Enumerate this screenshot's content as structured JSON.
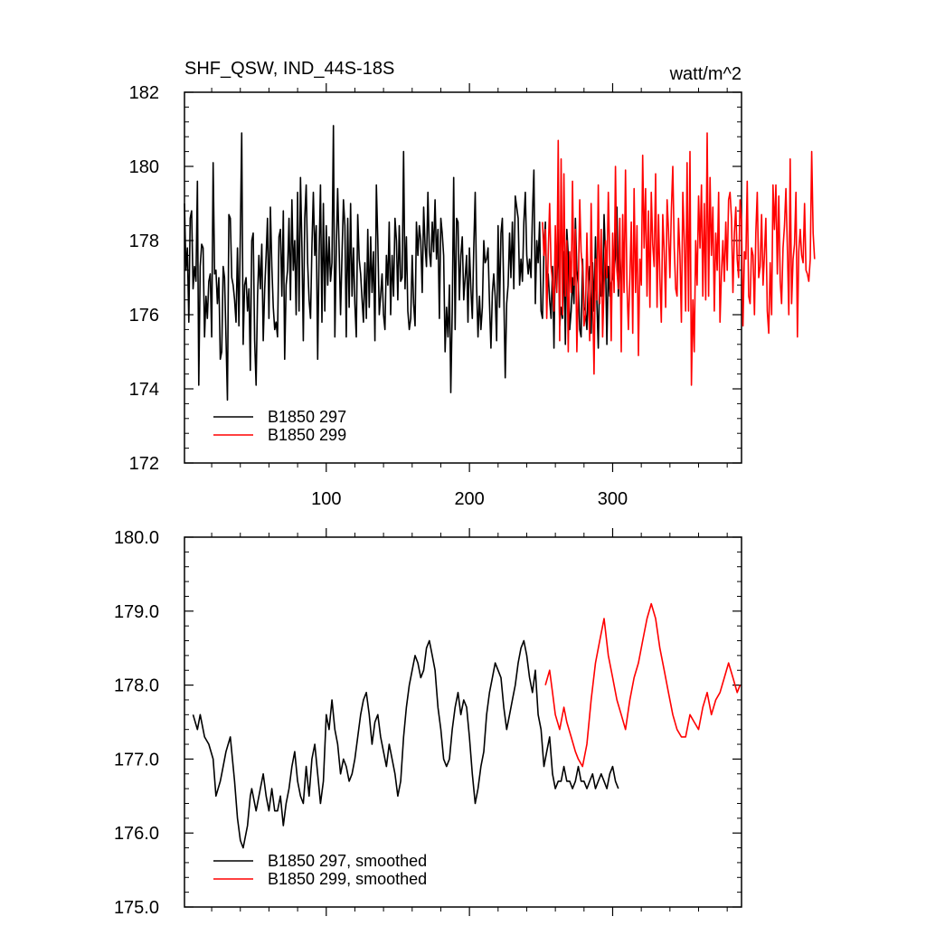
{
  "chart_data": [
    {
      "type": "line",
      "title": "SHF_QSW, IND_44S-18S",
      "units": "watt/m^2",
      "xlim": [
        1,
        390
      ],
      "ylim": [
        172,
        182
      ],
      "xticks": [
        100,
        200,
        300
      ],
      "xtick_labels": [
        "100",
        "200",
        "300"
      ],
      "yticks": [
        172,
        174,
        176,
        178,
        180,
        182
      ],
      "ytick_labels": [
        "172",
        "174",
        "176",
        "178",
        "180",
        "182"
      ],
      "legend_position": "bottom-left",
      "series": [
        {
          "name": "B1850 297",
          "color": "#000000",
          "x_start": 1,
          "values": [
            179.0,
            177.2,
            177.8,
            175.8,
            178.6,
            178.8,
            176.7,
            177.3,
            176.9,
            179.6,
            174.1,
            177.3,
            177.9,
            177.8,
            175.4,
            176.5,
            175.9,
            176.9,
            177.1,
            175.4,
            180.1,
            177.1,
            177.2,
            176.3,
            177.0,
            174.8,
            175.0,
            177.3,
            177.0,
            175.4,
            173.7,
            178.7,
            178.6,
            177.0,
            176.8,
            176.4,
            175.8,
            177.8,
            175.7,
            178.2,
            180.9,
            175.2,
            176.8,
            177.0,
            176.1,
            176.7,
            174.5,
            178.0,
            178.2,
            175.3,
            174.1,
            176.5,
            177.6,
            176.7,
            177.9,
            175.3,
            176.7,
            177.6,
            178.6,
            175.9,
            178.9,
            177.3,
            176.2,
            175.6,
            175.8,
            175.4,
            178.1,
            178.3,
            176.5,
            178.8,
            174.8,
            176.8,
            177.2,
            178.6,
            176.4,
            179.1,
            177.2,
            178.0,
            176.0,
            179.3,
            176.1,
            179.7,
            177.8,
            175.3,
            178.6,
            179.5,
            177.4,
            176.4,
            175.9,
            177.8,
            179.3,
            177.6,
            178.4,
            174.8,
            177.7,
            179.5,
            175.8,
            179.0,
            176.1,
            178.4,
            176.8,
            178.1,
            176.9,
            177.4,
            181.1,
            175.4,
            177.8,
            179.4,
            177.8,
            176.0,
            177.6,
            179.1,
            178.4,
            175.4,
            178.6,
            176.2,
            179.0,
            176.5,
            177.8,
            176.3,
            175.4,
            178.7,
            177.5,
            177.1,
            176.4,
            175.8,
            177.4,
            175.9,
            178.3,
            176.2,
            178.1,
            176.6,
            177.7,
            175.3,
            179.5,
            178.0,
            176.0,
            176.5,
            177.1,
            176.0,
            175.6,
            177.6,
            176.8,
            178.5,
            176.0,
            177.6,
            176.5,
            178.6,
            178.0,
            176.4,
            178.4,
            176.9,
            177.0,
            180.4,
            176.7,
            178.1,
            176.1,
            175.6,
            175.9,
            177.6,
            176.3,
            175.7,
            178.5,
            177.6,
            178.4,
            178.0,
            176.6,
            178.9,
            177.9,
            177.3,
            179.3,
            177.7,
            177.3,
            178.5,
            177.7,
            179.1,
            177.5,
            178.3,
            175.9,
            178.6,
            178.2,
            177.6,
            175.0,
            176.2,
            175.4,
            176.8,
            173.9,
            176.1,
            179.7,
            175.6,
            178.6,
            178.5,
            176.4,
            177.6,
            178.1,
            176.4,
            177.0,
            177.6,
            175.8,
            177.8,
            176.7,
            175.9,
            177.8,
            179.3,
            176.8,
            175.4,
            176.5,
            175.6,
            176.2,
            178.0,
            177.4,
            177.5,
            177.8,
            176.3,
            175.1,
            176.6,
            177.1,
            176.5,
            175.3,
            178.4,
            176.2,
            178.2,
            178.6,
            176.6,
            174.3,
            176.3,
            176.8,
            178.2,
            177.0,
            178.5,
            176.7,
            179.2,
            178.9,
            178.6,
            176.8,
            177.5,
            176.9,
            178.5,
            179.3,
            177.6,
            177.1,
            177.5,
            177.0,
            178.7,
            179.9,
            176.3,
            178.0,
            177.4,
            178.5,
            176.1,
            175.9,
            177.8,
            178.5,
            176.5,
            177.1,
            176.4,
            175.9,
            177.3,
            175.1,
            177.8,
            176.7,
            178.3,
            175.7,
            176.2,
            175.9,
            177.7,
            175.2,
            178.3,
            177.6,
            175.6,
            176.1,
            177.0,
            176.3,
            178.6,
            177.2,
            176.8,
            175.6,
            175.4,
            177.5,
            176.2,
            176.1,
            175.6,
            176.9,
            177.3,
            175.5,
            177.4,
            176.1,
            178.1,
            176.3,
            175.1,
            177.3,
            176.5,
            176.5,
            178.7,
            177.5,
            175.2,
            177.3,
            176.5,
            176.8,
            177.0,
            177.2,
            177.6,
            178.9,
            176.5,
            177.7,
            176.8
          ]
        },
        {
          "name": "B1850 299",
          "color": "#ff0000",
          "x_start": 251,
          "values": [
            178.5,
            177.6,
            178.3,
            175.9,
            177.6,
            179.0,
            177.3,
            176.9,
            176.1,
            178.4,
            176.6,
            180.7,
            175.3,
            180.2,
            176.0,
            179.8,
            176.5,
            178.0,
            175.0,
            177.7,
            176.6,
            179.6,
            176.8,
            178.3,
            175.0,
            176.7,
            179.1,
            177.7,
            177.2,
            175.7,
            176.0,
            178.2,
            176.6,
            175.3,
            179.0,
            176.6,
            174.4,
            177.5,
            176.4,
            179.5,
            176.3,
            178.3,
            175.4,
            176.8,
            178.0,
            177.0,
            179.3,
            177.5,
            175.3,
            178.2,
            176.6,
            180.0,
            177.2,
            176.7,
            178.6,
            175.0,
            178.7,
            176.6,
            179.9,
            176.8,
            175.6,
            177.0,
            178.5,
            175.5,
            179.4,
            176.6,
            178.4,
            174.9,
            177.5,
            176.8,
            180.3,
            177.8,
            179.4,
            176.5,
            178.8,
            176.2,
            179.3,
            177.9,
            177.3,
            179.8,
            176.2,
            178.7,
            177.0,
            175.8,
            178.7,
            177.7,
            176.2,
            179.1,
            178.3,
            177.0,
            178.8,
            180.0,
            177.8,
            176.7,
            176.5,
            178.6,
            177.6,
            175.8,
            179.3,
            178.0,
            176.1,
            180.1,
            176.1,
            180.4,
            174.1,
            176.4,
            175.0,
            178.0,
            176.8,
            179.2,
            177.8,
            179.5,
            176.5,
            179.0,
            176.4,
            180.9,
            176.5,
            179.7,
            177.6,
            178.9,
            176.1,
            178.2,
            177.2,
            179.3,
            175.8,
            177.1,
            178.0,
            176.9,
            178.5,
            177.2,
            179.1,
            179.3,
            178.6,
            176.6,
            178.2,
            178.9,
            177.5,
            177.0,
            179.1,
            178.5,
            175.7,
            177.7,
            177.5,
            179.6,
            176.5,
            176.3,
            177.8,
            177.6,
            176.0,
            178.2,
            179.3,
            177.0,
            177.3,
            178.7,
            176.8,
            177.6,
            178.6,
            176.1,
            175.5,
            177.4,
            176.0,
            179.5,
            178.3,
            179.5,
            177.1,
            179.2,
            176.9,
            176.3,
            177.8,
            178.4,
            179.4,
            177.8,
            176.0,
            180.2,
            176.3,
            177.5,
            177.9,
            179.3,
            175.4,
            177.7,
            178.3,
            177.6,
            177.4,
            179.0,
            177.2,
            177.1,
            176.9,
            177.5,
            180.4,
            178.2,
            177.5
          ]
        }
      ]
    },
    {
      "type": "line",
      "title": "",
      "xlim": [
        1,
        390
      ],
      "ylim": [
        175.0,
        180.0
      ],
      "xticks": [
        100,
        200,
        300
      ],
      "xtick_labels": [],
      "yticks": [
        175.0,
        176.0,
        177.0,
        178.0,
        179.0,
        180.0
      ],
      "ytick_labels": [
        "175.0",
        "176.0",
        "177.0",
        "178.0",
        "179.0",
        "180.0"
      ],
      "legend_position": "bottom-left",
      "series": [
        {
          "name": "B1850 297, smoothed",
          "color": "#000000",
          "anchors_x": [
            7,
            10,
            12,
            15,
            18,
            21,
            23,
            26,
            27,
            30,
            33,
            36,
            38,
            40,
            42,
            45,
            47,
            48,
            51,
            54,
            56,
            58,
            60,
            62,
            64,
            66,
            68,
            70,
            72,
            74,
            76,
            78,
            80,
            82,
            84,
            86,
            88,
            90,
            92,
            94,
            96,
            98,
            100,
            102,
            104,
            106,
            108,
            110,
            112,
            114,
            116,
            118,
            120,
            122,
            124,
            126,
            128,
            130,
            132,
            134,
            136,
            138,
            140,
            142,
            144,
            146,
            148,
            150,
            152,
            154,
            156,
            158,
            160,
            162,
            164,
            166,
            168,
            170,
            172,
            174,
            176,
            178,
            180,
            182,
            184,
            186,
            188,
            190,
            192,
            194,
            196,
            198,
            200,
            202,
            204,
            206,
            208,
            210,
            212,
            214,
            216,
            218,
            220,
            222,
            224,
            226,
            228,
            230,
            232,
            234,
            236,
            238,
            240,
            242,
            244,
            246,
            248,
            250,
            252,
            254,
            256,
            258,
            260,
            262,
            264,
            266,
            268,
            270,
            272,
            274,
            276,
            278,
            280,
            282,
            284,
            286,
            288,
            290,
            292,
            294,
            296,
            298,
            300,
            302,
            304
          ],
          "anchors_y": [
            177.6,
            177.4,
            177.6,
            177.3,
            177.2,
            177.0,
            176.5,
            176.7,
            176.8,
            177.1,
            177.3,
            176.7,
            176.2,
            175.9,
            175.8,
            176.1,
            176.5,
            176.6,
            176.3,
            176.6,
            176.8,
            176.5,
            176.3,
            176.6,
            176.3,
            176.3,
            176.5,
            176.1,
            176.4,
            176.6,
            176.9,
            177.1,
            176.7,
            176.5,
            176.4,
            176.9,
            176.5,
            177.0,
            177.2,
            176.8,
            176.4,
            176.7,
            177.6,
            177.4,
            177.8,
            177.4,
            177.2,
            176.8,
            177.0,
            176.9,
            176.7,
            176.8,
            177.0,
            177.3,
            177.6,
            177.8,
            177.9,
            177.6,
            177.2,
            177.5,
            177.6,
            177.3,
            177.1,
            176.9,
            177.2,
            177.0,
            176.8,
            176.5,
            176.7,
            177.3,
            177.7,
            178.0,
            178.2,
            178.4,
            178.3,
            178.1,
            178.2,
            178.5,
            178.6,
            178.4,
            178.2,
            177.7,
            177.4,
            177.0,
            176.9,
            177.0,
            177.4,
            177.7,
            177.9,
            177.6,
            177.8,
            177.7,
            177.3,
            176.8,
            176.4,
            176.6,
            176.9,
            177.1,
            177.6,
            177.9,
            178.1,
            178.3,
            178.2,
            178.1,
            177.7,
            177.4,
            177.6,
            177.8,
            178.0,
            178.3,
            178.5,
            178.6,
            178.4,
            178.1,
            177.9,
            178.2,
            177.6,
            177.4,
            176.9,
            177.1,
            177.3,
            176.8,
            176.6,
            176.7,
            176.7,
            176.9,
            176.7,
            176.7,
            176.6,
            176.7,
            176.9,
            176.7,
            176.7,
            176.6,
            176.7,
            176.8,
            176.6,
            176.7,
            176.8,
            176.7,
            176.6,
            176.8,
            176.9,
            176.7,
            176.6
          ]
        },
        {
          "name": "B1850 299, smoothed",
          "color": "#ff0000",
          "anchors_x": [
            253,
            256,
            258,
            260,
            263,
            266,
            268,
            271,
            274,
            276,
            279,
            282,
            285,
            288,
            291,
            294,
            297,
            300,
            303,
            306,
            309,
            312,
            315,
            318,
            321,
            324,
            327,
            330,
            333,
            336,
            339,
            342,
            345,
            348,
            351,
            354,
            357,
            360,
            363,
            366,
            369,
            372,
            375,
            378,
            381,
            384,
            387,
            389
          ],
          "anchors_y": [
            178.0,
            178.2,
            177.9,
            177.6,
            177.4,
            177.7,
            177.5,
            177.3,
            177.1,
            177.0,
            176.9,
            177.2,
            177.8,
            178.3,
            178.6,
            178.9,
            178.4,
            178.1,
            177.8,
            177.6,
            177.4,
            177.8,
            178.1,
            178.3,
            178.6,
            178.9,
            179.1,
            178.9,
            178.5,
            178.2,
            177.9,
            177.6,
            177.4,
            177.3,
            177.3,
            177.6,
            177.5,
            177.4,
            177.7,
            177.9,
            177.6,
            177.8,
            177.9,
            178.1,
            178.3,
            178.1,
            177.9,
            178.0
          ]
        }
      ]
    }
  ]
}
